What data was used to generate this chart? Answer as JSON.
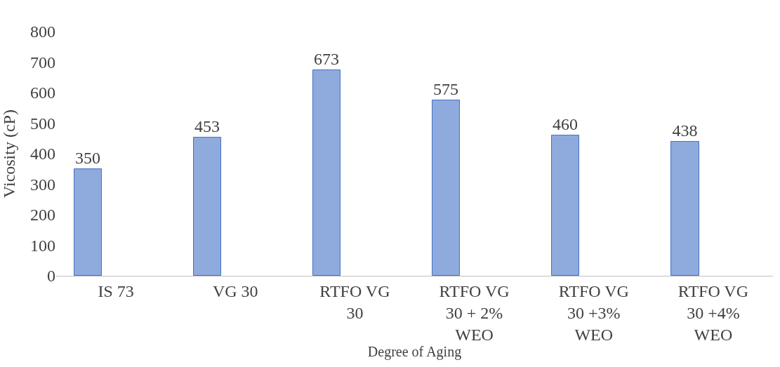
{
  "chart_data": {
    "type": "bar",
    "xlabel": "Degree of Aging",
    "ylabel": "Vicosity (cP)",
    "categories": [
      "IS 73",
      "VG 30",
      "RTFO VG 30",
      "RTFO VG 30 + 2% WEO",
      "RTFO VG 30 +3% WEO",
      "RTFO VG 30 +4% WEO"
    ],
    "values": [
      350,
      453,
      673,
      575,
      460,
      438
    ],
    "color": "#8faadc",
    "ylim": [
      0,
      800
    ],
    "yticks": [
      0,
      100,
      200,
      300,
      400,
      500,
      600,
      700,
      800
    ],
    "grid": false,
    "data_labels": true
  }
}
